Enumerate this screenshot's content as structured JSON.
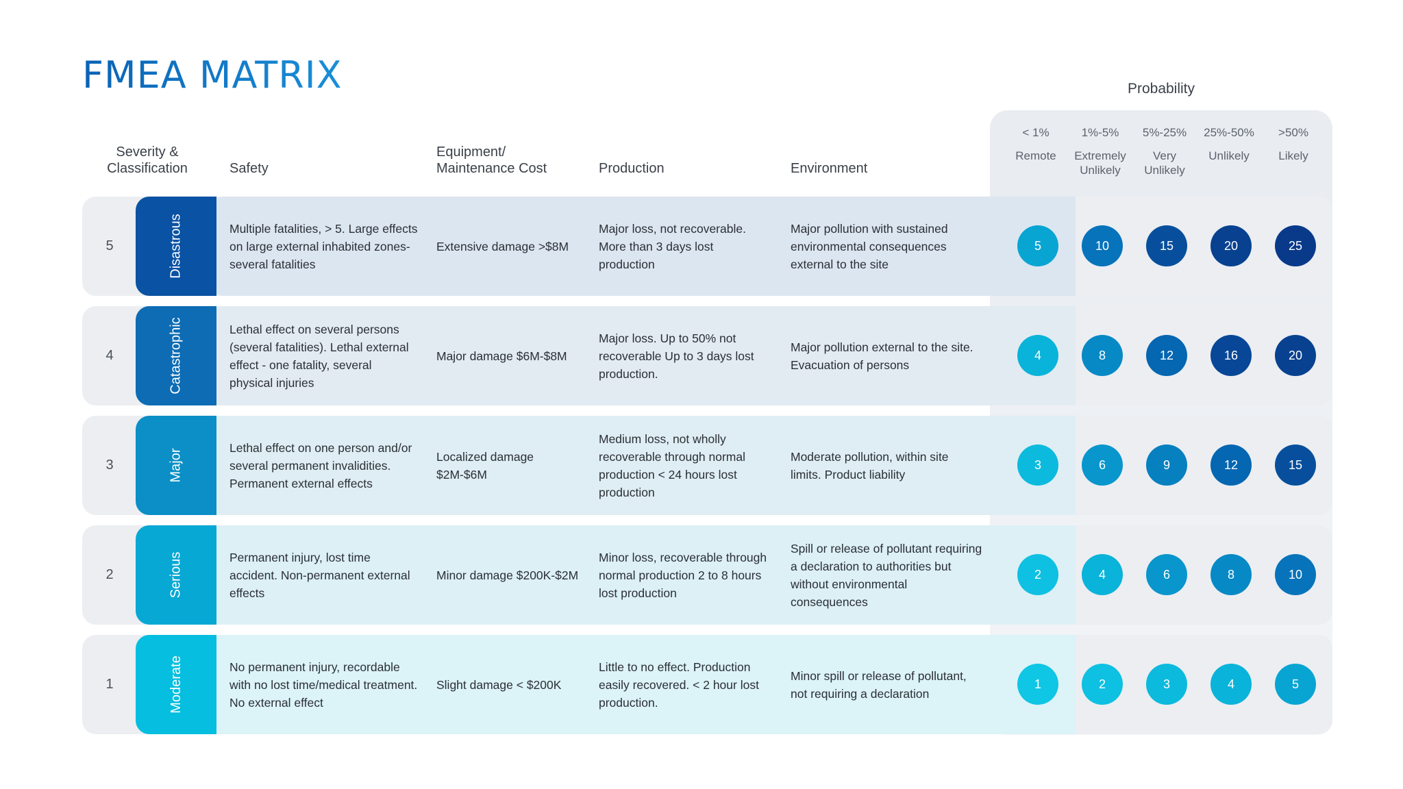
{
  "title": "FMEA MATRIX",
  "probability": {
    "title": "Probability",
    "columns": [
      {
        "range": "< 1%",
        "label": "Remote"
      },
      {
        "range": "1%-5%",
        "label": "Extremely Unlikely"
      },
      {
        "range": "5%-25%",
        "label": "Very Unlikely"
      },
      {
        "range": "25%-50%",
        "label": "Unlikely"
      },
      {
        "range": ">50%",
        "label": "Likely"
      }
    ]
  },
  "headers": {
    "severity": "Severity & Classification",
    "safety": "Safety",
    "equipment": "Equipment/ Maintenance Cost",
    "production": "Production",
    "environment": "Environment"
  },
  "rows": [
    {
      "number": "5",
      "classification": "Disastrous",
      "safety": "Multiple fatalities, > 5. Large effects on large external inhabited zones- several fatalities",
      "equipment": "Extensive damage >$8M",
      "production": "Major loss, not recoverable. More than 3 days lost production",
      "environment": "Major pollution with sustained environmental consequences external to the site",
      "scores": [
        "5",
        "10",
        "15",
        "20",
        "25"
      ]
    },
    {
      "number": "4",
      "classification": "Catastrophic",
      "safety": "Lethal effect on several persons (several fatalities). Lethal external effect - one fatality, several physical injuries",
      "equipment": "Major damage $6M-$8M",
      "production": "Major loss. Up to 50% not recoverable Up to 3 days lost production.",
      "environment": "Major pollution external to the site. Evacuation of persons",
      "scores": [
        "4",
        "8",
        "12",
        "16",
        "20"
      ]
    },
    {
      "number": "3",
      "classification": "Major",
      "safety": "Lethal effect on one person and/or several permanent invalidities. Permanent external effects",
      "equipment": "Localized damage $2M-$6M",
      "production": "Medium loss, not wholly recoverable through normal production < 24 hours lost production",
      "environment": "Moderate pollution, within site limits. Product liability",
      "scores": [
        "3",
        "6",
        "9",
        "12",
        "15"
      ]
    },
    {
      "number": "2",
      "classification": "Serious",
      "safety": "Permanent injury, lost time accident. Non-permanent external effects",
      "equipment": "Minor damage $200K-$2M",
      "production": "Minor loss, recoverable through normal production 2 to 8 hours lost production",
      "environment": "Spill or release of pollutant requiring a declaration to authorities but without environmental consequences",
      "scores": [
        "2",
        "4",
        "6",
        "8",
        "10"
      ]
    },
    {
      "number": "1",
      "classification": "Moderate",
      "safety": "No permanent injury, recordable with no lost time/medical treatment. No external effect",
      "equipment": "Slight damage < $200K",
      "production": "Little to no effect. Production easily recovered. < 2 hour lost production.",
      "environment": "Minor spill or release of pollutant, not requiring a declaration",
      "scores": [
        "1",
        "2",
        "3",
        "4",
        "5"
      ]
    }
  ],
  "colors": {
    "title": "#1574c4",
    "tab": [
      "#0a52a3",
      "#0d6cb4",
      "#0b8fc6",
      "#07a8d4",
      "#05bee0"
    ],
    "row_fill": [
      "#dce6f0",
      "#e2ebf2",
      "#dfeef4",
      "#dcf0f6",
      "#dcf3f8"
    ],
    "dot_scale": {
      "1": "#0fc6e4",
      "2": "#0ec0e1",
      "3": "#0cbadd",
      "4": "#0ab3d9",
      "5": "#08a5d3",
      "6": "#0896cc",
      "8": "#0789c6",
      "9": "#0780c0",
      "10": "#0673bb",
      "12": "#0566b1",
      "15": "#074f9c",
      "16": "#084797",
      "20": "#084190",
      "25": "#093a8a"
    }
  }
}
